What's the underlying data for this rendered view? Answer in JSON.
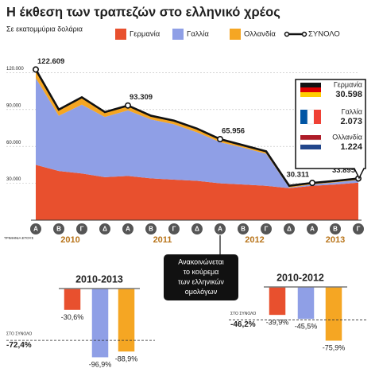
{
  "chart_data": [
    {
      "type": "area",
      "title": "Η έκθεση των τραπεζών στο ελληνικό χρέος",
      "subtitle": "Σε εκατομμύρια δολάρια",
      "x_label": "ΤΡΙΜΗΝΙΑ ΕΤΟΥΣ",
      "categories": [
        "Α",
        "Β",
        "Γ",
        "Δ",
        "Α",
        "Β",
        "Γ",
        "Δ",
        "Α",
        "Β",
        "Γ",
        "Δ",
        "Α",
        "Β",
        "Γ"
      ],
      "years": [
        "2010",
        "2011",
        "2012",
        "2013"
      ],
      "ylim": [
        0,
        130000
      ],
      "yticks": [
        {
          "value": 30000,
          "label": "30.000"
        },
        {
          "value": 60000,
          "label": "60.000"
        },
        {
          "value": 90000,
          "label": "90.000"
        },
        {
          "value": 120000,
          "label": "120.000"
        }
      ],
      "grid": true,
      "series": [
        {
          "name": "Γερμανία",
          "type": "area",
          "color": "#e8502e",
          "values": [
            45000,
            40000,
            38000,
            35000,
            36000,
            34000,
            33000,
            32000,
            30000,
            29000,
            28000,
            26000,
            28000,
            29000,
            30598
          ],
          "value_labels": [
            null,
            null,
            null,
            null,
            null,
            null,
            null,
            null,
            null,
            null,
            null,
            null,
            null,
            null,
            "30.598"
          ]
        },
        {
          "name": "Γαλλία",
          "type": "area",
          "color": "#8f9fe6",
          "values": [
            70600,
            45000,
            56000,
            49000,
            53300,
            48000,
            45000,
            39500,
            33500,
            30000,
            26000,
            500,
            1100,
            1800,
            2073
          ],
          "value_labels": [
            null,
            null,
            null,
            null,
            null,
            null,
            null,
            null,
            null,
            null,
            null,
            null,
            null,
            null,
            "2.073"
          ]
        },
        {
          "name": "Ολλανδία",
          "type": "area",
          "color": "#f5a623",
          "values": [
            7000,
            5000,
            6000,
            4000,
            4000,
            3000,
            3000,
            3000,
            2500,
            2000,
            2000,
            1500,
            1200,
            1200,
            1224
          ],
          "value_labels": [
            null,
            null,
            null,
            null,
            null,
            null,
            null,
            null,
            null,
            null,
            null,
            null,
            null,
            null,
            "1.224"
          ]
        },
        {
          "name": "ΣΥΝΟΛΟ",
          "type": "line",
          "color": "#111111",
          "values": [
            122609,
            90000,
            100000,
            88000,
            93309,
            85000,
            81000,
            74500,
            65956,
            61000,
            56000,
            28000,
            30311,
            32000,
            33895
          ],
          "value_labels": [
            "122.609",
            null,
            null,
            null,
            "93.309",
            null,
            null,
            null,
            "65.956",
            null,
            null,
            null,
            "30.311",
            null,
            "33.895"
          ]
        }
      ],
      "annotation": [
        "Ανακοινώνεται",
        "το κούρεμα",
        "των ελληνικών",
        "ομολόγων"
      ]
    },
    {
      "type": "bar",
      "title": "2010-2013",
      "values": [
        -30.6,
        -96.9,
        -88.9
      ],
      "value_labels": [
        "-30,6%",
        "-96,9%",
        "-88,9%"
      ],
      "colors": [
        "#e8502e",
        "#8f9fe6",
        "#f5a623"
      ],
      "total": {
        "label": "ΣΤΟ ΣΥΝΟΛΟ",
        "value": -72.4,
        "value_label": "-72,4%"
      }
    },
    {
      "type": "bar",
      "title": "2010-2012",
      "values": [
        -39.9,
        -45.5,
        -75.9
      ],
      "value_labels": [
        "-39,9%",
        "-45,5%",
        "-75,9%"
      ],
      "colors": [
        "#e8502e",
        "#8f9fe6",
        "#f5a623"
      ],
      "total": {
        "label": "ΣΤΟ ΣΥΝΟΛΟ",
        "value": -46.2,
        "value_label": "-46,2%"
      }
    }
  ]
}
